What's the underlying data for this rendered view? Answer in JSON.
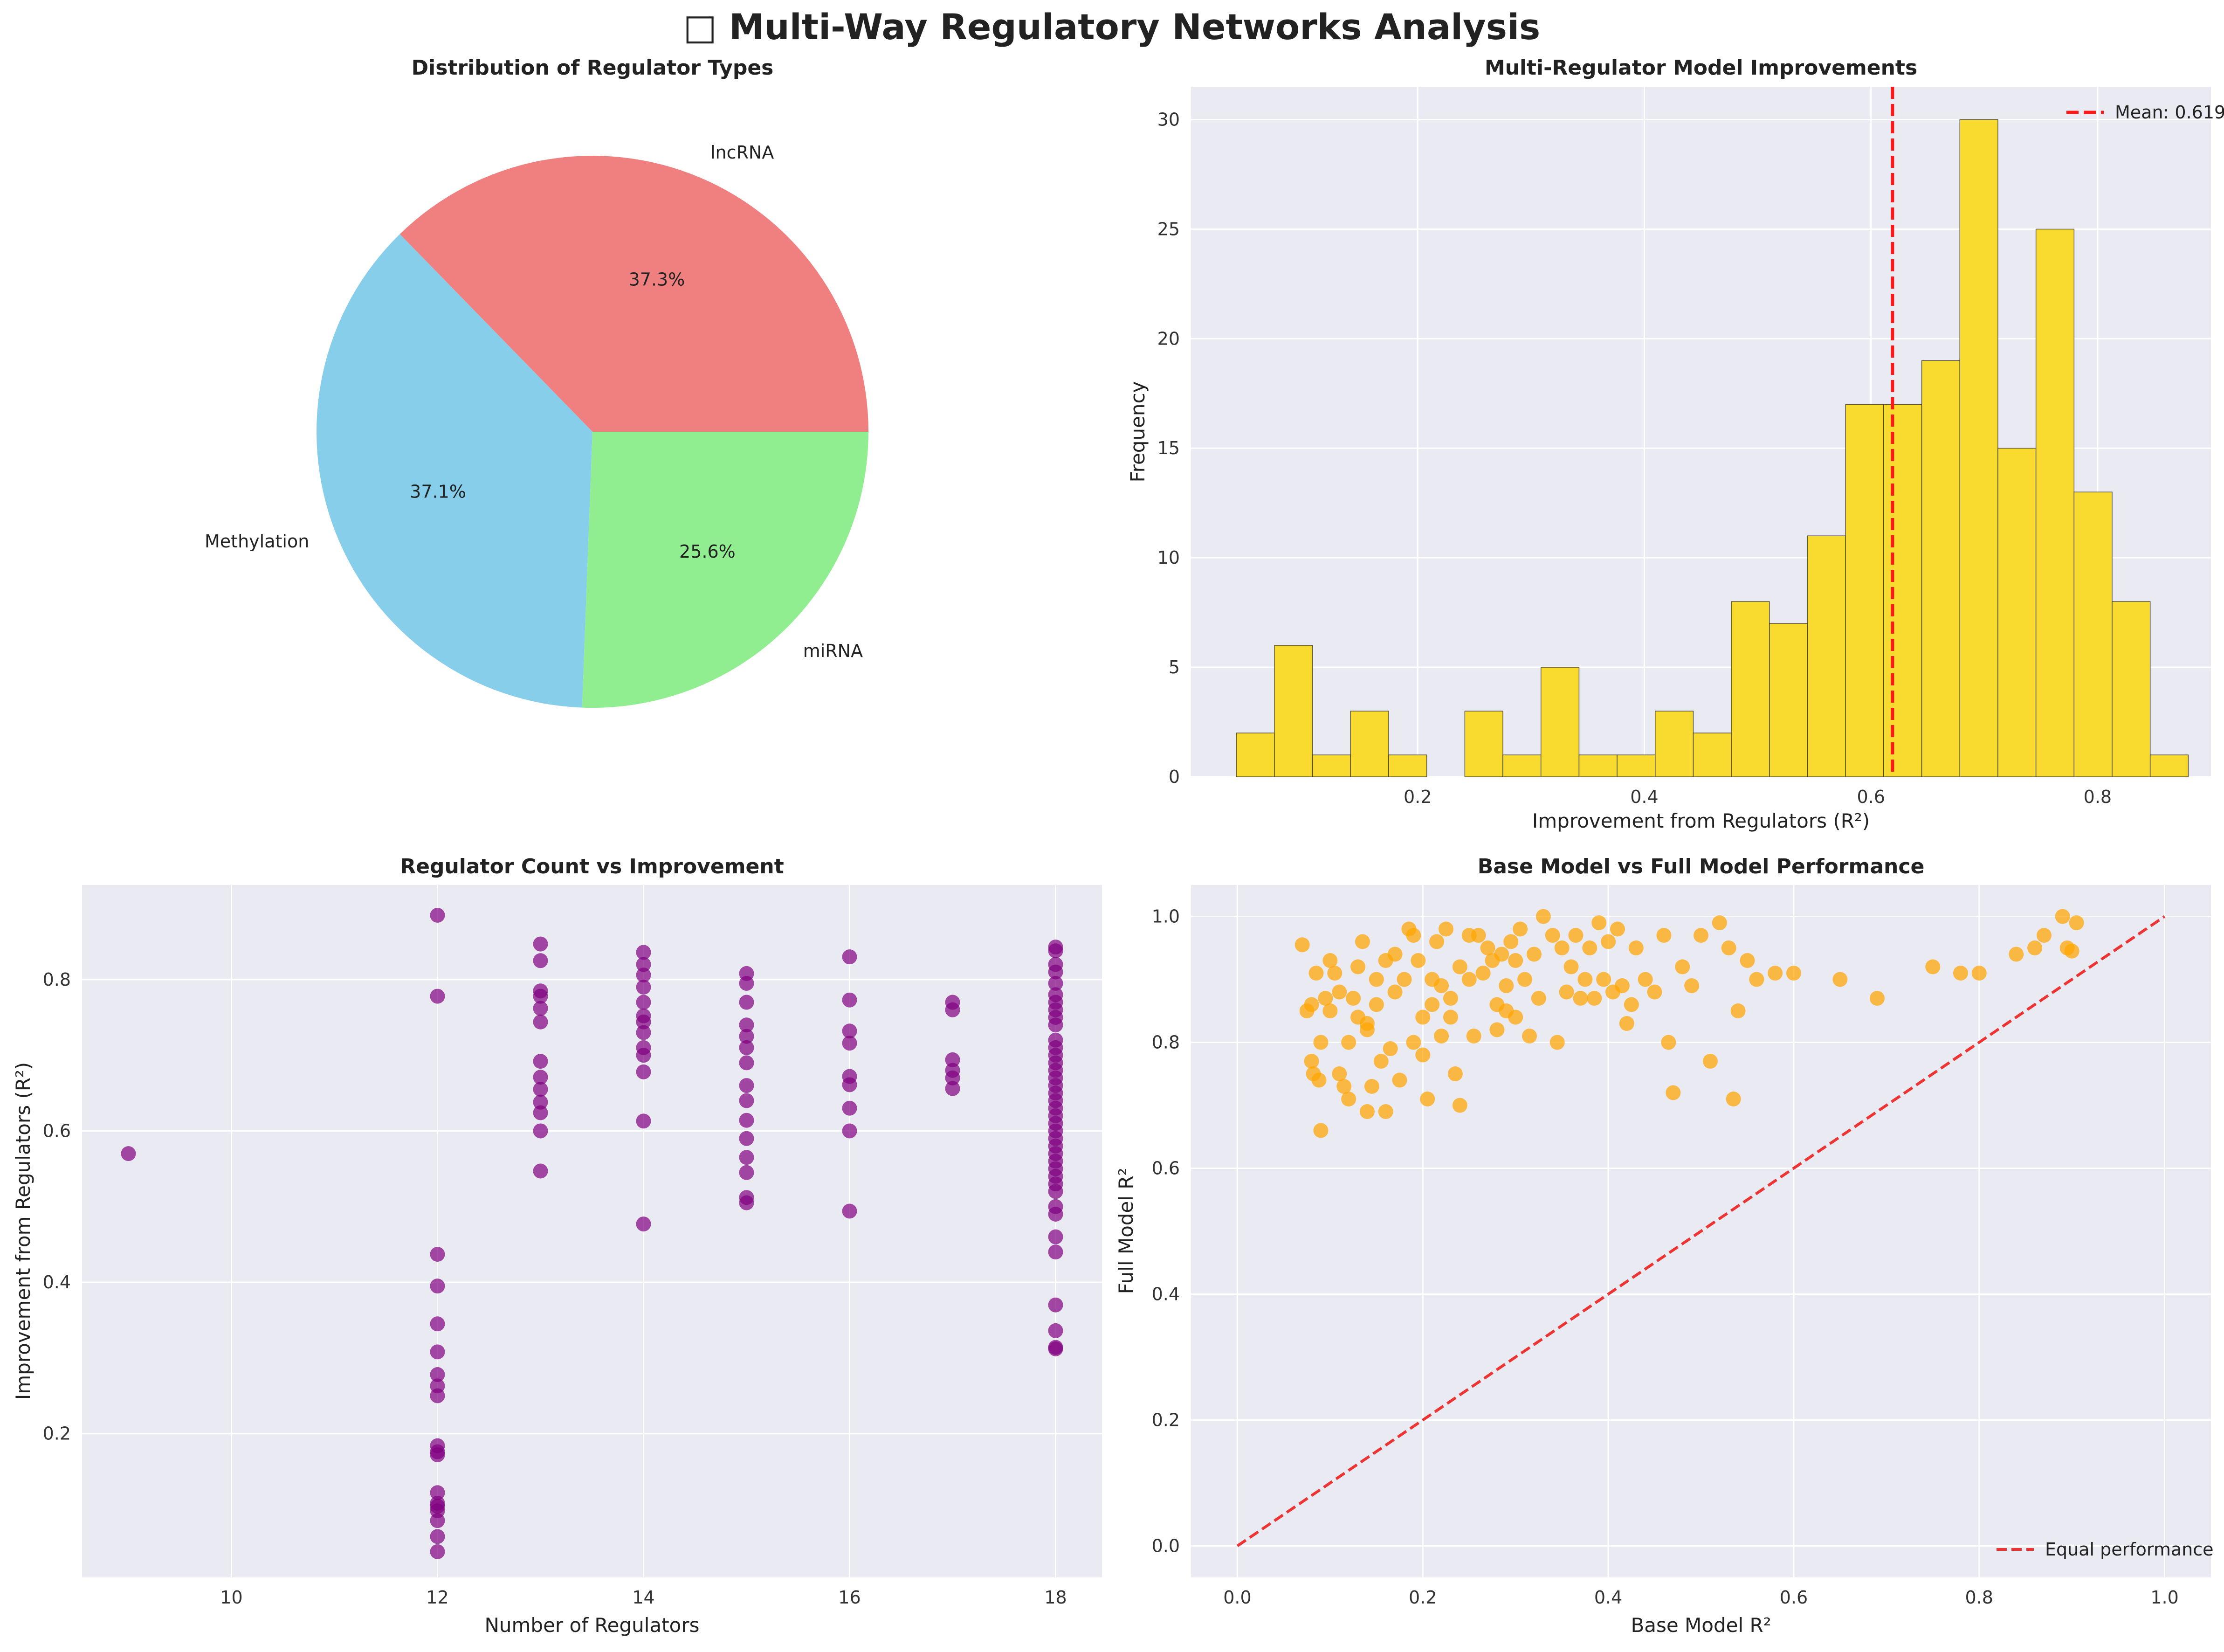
{
  "figure": {
    "title": "□ Multi-Way Regulatory Networks Analysis"
  },
  "colors": {
    "axes_bg": "#EAEAF2",
    "grid": "#FFFFFF",
    "pie": [
      "#F08080",
      "#87CEEB",
      "#90EE90"
    ],
    "hist": "#F9DA2F",
    "hist_edge": "#333333",
    "mean_line": "#FF1A1A",
    "scatter_purple": "#800080",
    "scatter_orange": "#FFA500",
    "equal_line": "#EE3333"
  },
  "chart_data": [
    {
      "type": "pie",
      "title": "Distribution of Regulator Types",
      "labels": [
        "lncRNA",
        "Methylation",
        "miRNA"
      ],
      "values": [
        37.3,
        37.1,
        25.6
      ],
      "pct_labels": [
        "37.3%",
        "37.1%",
        "25.6%"
      ],
      "startangle_deg": 0
    },
    {
      "type": "bar",
      "title": "Multi-Regulator Model Improvements",
      "xlabel": "Improvement from Regulators (R²)",
      "ylabel": "Frequency",
      "bin_start": 0.04,
      "bin_width": 0.0336,
      "counts": [
        2,
        6,
        1,
        3,
        1,
        0,
        3,
        1,
        5,
        1,
        1,
        3,
        2,
        8,
        7,
        11,
        17,
        17,
        19,
        30,
        15,
        25,
        13,
        8,
        1
      ],
      "xlim": [
        0.0,
        0.9
      ],
      "ylim": [
        0,
        31.5
      ],
      "xticks": [
        0.2,
        0.4,
        0.6,
        0.8
      ],
      "xtick_labels": [
        "0.2",
        "0.4",
        "0.6",
        "0.8"
      ],
      "yticks": [
        0,
        5,
        10,
        15,
        20,
        25,
        30
      ],
      "ytick_labels": [
        "0",
        "5",
        "10",
        "15",
        "20",
        "25",
        "30"
      ],
      "mean": 0.619,
      "legend": "Mean: 0.619",
      "legend_loc": "upper right",
      "grid": true
    },
    {
      "type": "scatter",
      "title": "Regulator Count vs Improvement",
      "xlabel": "Number of Regulators",
      "ylabel": "Improvement from Regulators (R²)",
      "xlim": [
        8.55,
        18.45
      ],
      "ylim": [
        0.01,
        0.925
      ],
      "xticks": [
        10,
        12,
        14,
        16,
        18
      ],
      "xtick_labels": [
        "10",
        "12",
        "14",
        "16",
        "18"
      ],
      "yticks": [
        0.2,
        0.4,
        0.6,
        0.8
      ],
      "ytick_labels": [
        "0.2",
        "0.4",
        "0.6",
        "0.8"
      ],
      "grid": true,
      "points": [
        [
          9,
          0.57
        ],
        [
          12,
          0.885
        ],
        [
          12,
          0.778
        ],
        [
          12,
          0.437
        ],
        [
          12,
          0.395
        ],
        [
          12,
          0.345
        ],
        [
          12,
          0.308
        ],
        [
          12,
          0.278
        ],
        [
          12,
          0.263
        ],
        [
          12,
          0.25
        ],
        [
          12,
          0.184
        ],
        [
          12,
          0.176
        ],
        [
          12,
          0.172
        ],
        [
          12,
          0.122
        ],
        [
          12,
          0.108
        ],
        [
          12,
          0.104
        ],
        [
          12,
          0.098
        ],
        [
          12,
          0.085
        ],
        [
          12,
          0.064
        ],
        [
          12,
          0.044
        ],
        [
          13,
          0.847
        ],
        [
          13,
          0.825
        ],
        [
          13,
          0.785
        ],
        [
          13,
          0.778
        ],
        [
          13,
          0.762
        ],
        [
          13,
          0.744
        ],
        [
          13,
          0.692
        ],
        [
          13,
          0.671
        ],
        [
          13,
          0.655
        ],
        [
          13,
          0.638
        ],
        [
          13,
          0.624
        ],
        [
          13,
          0.6
        ],
        [
          13,
          0.547
        ],
        [
          14,
          0.836
        ],
        [
          14,
          0.82
        ],
        [
          14,
          0.806
        ],
        [
          14,
          0.79
        ],
        [
          14,
          0.77
        ],
        [
          14,
          0.752
        ],
        [
          14,
          0.744
        ],
        [
          14,
          0.73
        ],
        [
          14,
          0.71
        ],
        [
          14,
          0.7
        ],
        [
          14,
          0.678
        ],
        [
          14,
          0.613
        ],
        [
          14,
          0.477
        ],
        [
          15,
          0.808
        ],
        [
          15,
          0.795
        ],
        [
          15,
          0.77
        ],
        [
          15,
          0.74
        ],
        [
          15,
          0.725
        ],
        [
          15,
          0.71
        ],
        [
          15,
          0.69
        ],
        [
          15,
          0.66
        ],
        [
          15,
          0.64
        ],
        [
          15,
          0.614
        ],
        [
          15,
          0.59
        ],
        [
          15,
          0.565
        ],
        [
          15,
          0.545
        ],
        [
          15,
          0.512
        ],
        [
          15,
          0.505
        ],
        [
          16,
          0.83
        ],
        [
          16,
          0.773
        ],
        [
          16,
          0.732
        ],
        [
          16,
          0.716
        ],
        [
          16,
          0.672
        ],
        [
          16,
          0.661
        ],
        [
          16,
          0.63
        ],
        [
          16,
          0.6
        ],
        [
          16,
          0.494
        ],
        [
          17,
          0.77
        ],
        [
          17,
          0.76
        ],
        [
          17,
          0.694
        ],
        [
          17,
          0.68
        ],
        [
          17,
          0.67
        ],
        [
          17,
          0.656
        ],
        [
          18,
          0.843
        ],
        [
          18,
          0.838
        ],
        [
          18,
          0.82
        ],
        [
          18,
          0.81
        ],
        [
          18,
          0.795
        ],
        [
          18,
          0.78
        ],
        [
          18,
          0.77
        ],
        [
          18,
          0.76
        ],
        [
          18,
          0.75
        ],
        [
          18,
          0.74
        ],
        [
          18,
          0.72
        ],
        [
          18,
          0.71
        ],
        [
          18,
          0.7
        ],
        [
          18,
          0.69
        ],
        [
          18,
          0.68
        ],
        [
          18,
          0.67
        ],
        [
          18,
          0.66
        ],
        [
          18,
          0.65
        ],
        [
          18,
          0.64
        ],
        [
          18,
          0.63
        ],
        [
          18,
          0.62
        ],
        [
          18,
          0.61
        ],
        [
          18,
          0.6
        ],
        [
          18,
          0.59
        ],
        [
          18,
          0.58
        ],
        [
          18,
          0.57
        ],
        [
          18,
          0.56
        ],
        [
          18,
          0.55
        ],
        [
          18,
          0.54
        ],
        [
          18,
          0.53
        ],
        [
          18,
          0.52
        ],
        [
          18,
          0.5
        ],
        [
          18,
          0.49
        ],
        [
          18,
          0.46
        ],
        [
          18,
          0.44
        ],
        [
          18,
          0.37
        ],
        [
          18,
          0.336
        ],
        [
          18,
          0.314
        ],
        [
          18,
          0.312
        ]
      ]
    },
    {
      "type": "scatter",
      "title": "Base Model vs Full Model Performance",
      "xlabel": "Base Model R²",
      "ylabel": "Full Model R²",
      "xlim": [
        -0.05,
        1.05
      ],
      "ylim": [
        -0.05,
        1.05
      ],
      "xticks": [
        0.0,
        0.2,
        0.4,
        0.6,
        0.8,
        1.0
      ],
      "xtick_labels": [
        "0.0",
        "0.2",
        "0.4",
        "0.6",
        "0.8",
        "1.0"
      ],
      "yticks": [
        0.0,
        0.2,
        0.4,
        0.6,
        0.8,
        1.0
      ],
      "ytick_labels": [
        "0.0",
        "0.2",
        "0.4",
        "0.6",
        "0.8",
        "1.0"
      ],
      "legend": "Equal performance",
      "legend_loc": "lower right",
      "grid": true,
      "points": [
        [
          0.07,
          0.955
        ],
        [
          0.075,
          0.85
        ],
        [
          0.08,
          0.86
        ],
        [
          0.08,
          0.77
        ],
        [
          0.082,
          0.75
        ],
        [
          0.085,
          0.91
        ],
        [
          0.088,
          0.74
        ],
        [
          0.09,
          0.66
        ],
        [
          0.09,
          0.8
        ],
        [
          0.095,
          0.87
        ],
        [
          0.1,
          0.93
        ],
        [
          0.1,
          0.85
        ],
        [
          0.105,
          0.91
        ],
        [
          0.11,
          0.88
        ],
        [
          0.11,
          0.75
        ],
        [
          0.115,
          0.73
        ],
        [
          0.12,
          0.8
        ],
        [
          0.12,
          0.71
        ],
        [
          0.125,
          0.87
        ],
        [
          0.13,
          0.84
        ],
        [
          0.13,
          0.92
        ],
        [
          0.135,
          0.96
        ],
        [
          0.14,
          0.83
        ],
        [
          0.14,
          0.82
        ],
        [
          0.14,
          0.69
        ],
        [
          0.145,
          0.73
        ],
        [
          0.15,
          0.86
        ],
        [
          0.15,
          0.9
        ],
        [
          0.155,
          0.77
        ],
        [
          0.16,
          0.93
        ],
        [
          0.16,
          0.69
        ],
        [
          0.165,
          0.79
        ],
        [
          0.17,
          0.94
        ],
        [
          0.17,
          0.88
        ],
        [
          0.175,
          0.74
        ],
        [
          0.18,
          0.9
        ],
        [
          0.185,
          0.98
        ],
        [
          0.19,
          0.97
        ],
        [
          0.19,
          0.8
        ],
        [
          0.195,
          0.93
        ],
        [
          0.2,
          0.84
        ],
        [
          0.2,
          0.78
        ],
        [
          0.205,
          0.71
        ],
        [
          0.21,
          0.86
        ],
        [
          0.21,
          0.9
        ],
        [
          0.215,
          0.96
        ],
        [
          0.22,
          0.81
        ],
        [
          0.22,
          0.89
        ],
        [
          0.225,
          0.98
        ],
        [
          0.23,
          0.87
        ],
        [
          0.23,
          0.84
        ],
        [
          0.235,
          0.75
        ],
        [
          0.24,
          0.92
        ],
        [
          0.24,
          0.7
        ],
        [
          0.25,
          0.97
        ],
        [
          0.25,
          0.9
        ],
        [
          0.255,
          0.81
        ],
        [
          0.26,
          0.97
        ],
        [
          0.265,
          0.91
        ],
        [
          0.27,
          0.95
        ],
        [
          0.275,
          0.93
        ],
        [
          0.28,
          0.86
        ],
        [
          0.28,
          0.82
        ],
        [
          0.285,
          0.94
        ],
        [
          0.29,
          0.89
        ],
        [
          0.29,
          0.85
        ],
        [
          0.295,
          0.96
        ],
        [
          0.3,
          0.93
        ],
        [
          0.3,
          0.84
        ],
        [
          0.305,
          0.98
        ],
        [
          0.31,
          0.9
        ],
        [
          0.315,
          0.81
        ],
        [
          0.32,
          0.94
        ],
        [
          0.325,
          0.87
        ],
        [
          0.33,
          1.0
        ],
        [
          0.34,
          0.97
        ],
        [
          0.345,
          0.8
        ],
        [
          0.35,
          0.95
        ],
        [
          0.355,
          0.88
        ],
        [
          0.36,
          0.92
        ],
        [
          0.365,
          0.97
        ],
        [
          0.37,
          0.87
        ],
        [
          0.375,
          0.9
        ],
        [
          0.38,
          0.95
        ],
        [
          0.385,
          0.87
        ],
        [
          0.39,
          0.99
        ],
        [
          0.395,
          0.9
        ],
        [
          0.4,
          0.96
        ],
        [
          0.405,
          0.88
        ],
        [
          0.41,
          0.98
        ],
        [
          0.415,
          0.89
        ],
        [
          0.42,
          0.83
        ],
        [
          0.425,
          0.86
        ],
        [
          0.43,
          0.95
        ],
        [
          0.44,
          0.9
        ],
        [
          0.45,
          0.88
        ],
        [
          0.46,
          0.97
        ],
        [
          0.465,
          0.8
        ],
        [
          0.47,
          0.72
        ],
        [
          0.48,
          0.92
        ],
        [
          0.49,
          0.89
        ],
        [
          0.5,
          0.97
        ],
        [
          0.51,
          0.77
        ],
        [
          0.52,
          0.99
        ],
        [
          0.53,
          0.95
        ],
        [
          0.535,
          0.71
        ],
        [
          0.54,
          0.85
        ],
        [
          0.55,
          0.93
        ],
        [
          0.56,
          0.9
        ],
        [
          0.58,
          0.91
        ],
        [
          0.6,
          0.91
        ],
        [
          0.65,
          0.9
        ],
        [
          0.69,
          0.87
        ],
        [
          0.75,
          0.92
        ],
        [
          0.78,
          0.91
        ],
        [
          0.8,
          0.91
        ],
        [
          0.84,
          0.94
        ],
        [
          0.86,
          0.95
        ],
        [
          0.87,
          0.97
        ],
        [
          0.89,
          1.0
        ],
        [
          0.895,
          0.95
        ],
        [
          0.9,
          0.945
        ],
        [
          0.905,
          0.99
        ]
      ]
    }
  ]
}
